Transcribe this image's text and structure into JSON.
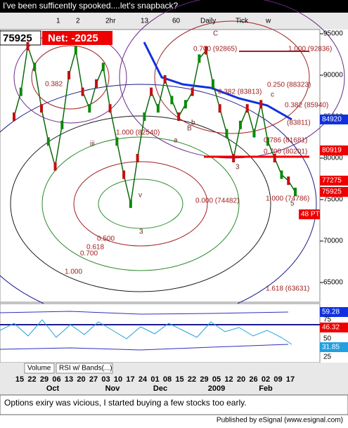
{
  "title": "I've been sufficently spooked....let's snapback?",
  "toolbar": [
    "1",
    "2",
    "2hr",
    "13",
    "60",
    "Daily",
    "Tick",
    "w"
  ],
  "symbol": {
    "price": "75925",
    "net": "Net: -2025"
  },
  "price_axis": {
    "range": [
      65000,
      95000
    ],
    "ticks": [
      95000,
      90000,
      85000,
      80000,
      75000,
      70000,
      65000
    ]
  },
  "closes": [
    85000,
    88000,
    93500,
    91000,
    86000,
    82000,
    79000,
    84000,
    90000,
    93000,
    88000,
    86000,
    89000,
    91000,
    86000,
    82000,
    78000,
    74500,
    80000,
    85000,
    88000,
    86000,
    89500,
    87000,
    85000,
    86500,
    88000,
    92000,
    93000,
    89000,
    86000,
    83000,
    80000,
    84000,
    86000,
    83000,
    86500,
    82000,
    80000,
    78000,
    77275,
    75925
  ],
  "price_labels": [
    "84920",
    "80919",
    "77275",
    "75925",
    "48 PT"
  ],
  "fib_labels": [
    "0.700 (92865)",
    "1.000 (92836)",
    "0.250 (88323)",
    "0.382 (85940)",
    "(83811)",
    "0.786 (81681)",
    "0.700 (80201)",
    "1.000 (74786)",
    "0.000 (74482)",
    "1.618 (63631)",
    "1.000 (82540)",
    "0.382 (83813)",
    "1.000",
    "0.500",
    "0.618",
    "0.700",
    "0.382"
  ],
  "wave_labels": [
    "C",
    "iii",
    "v",
    "3",
    "a",
    "b",
    "c",
    "B",
    "3",
    "5"
  ],
  "indicator": {
    "labels": [
      "59.28",
      "46.32",
      "31.85"
    ],
    "scale": [
      "75",
      "50",
      "25"
    ]
  },
  "tabs": [
    "Volume",
    "RSI w/ Bands(...)"
  ],
  "dates": [
    "15",
    "22",
    "29",
    "06",
    "13",
    "20",
    "27",
    "03",
    "10",
    "17",
    "24",
    "01",
    "08",
    "15",
    "22",
    "29",
    "05",
    "12",
    "20",
    "26",
    "02",
    "09",
    "17"
  ],
  "months": [
    "Oct",
    "Nov",
    "Dec",
    "2009",
    "Feb"
  ],
  "caption": "Options exiry was vicious, I started buying a few stocks too early.",
  "footer": "Published by eSignal (www.esignal.com)"
}
